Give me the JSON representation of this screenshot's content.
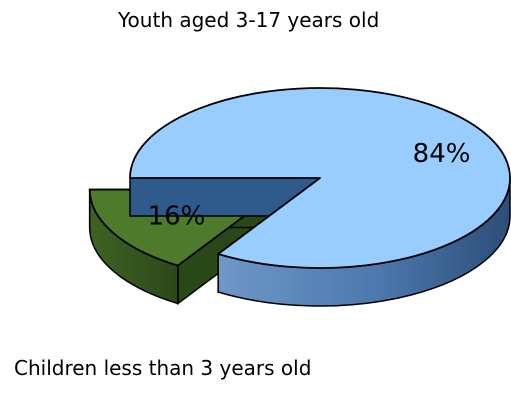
{
  "chart_data": {
    "type": "pie",
    "title": "",
    "slices": [
      {
        "category": "Youth aged 3-17 years old",
        "value": 84,
        "label": "84%",
        "exploded": false,
        "top_color": "#99CCFF",
        "side_color": "#4A7FB8",
        "side_dark": "#2F5A8C"
      },
      {
        "category": "Children less than 3 years old",
        "value": 16,
        "label": "16%",
        "exploded": true,
        "top_color": "#4E7A2C",
        "side_color": "#3A5E20",
        "side_dark": "#2A4717"
      }
    ]
  }
}
